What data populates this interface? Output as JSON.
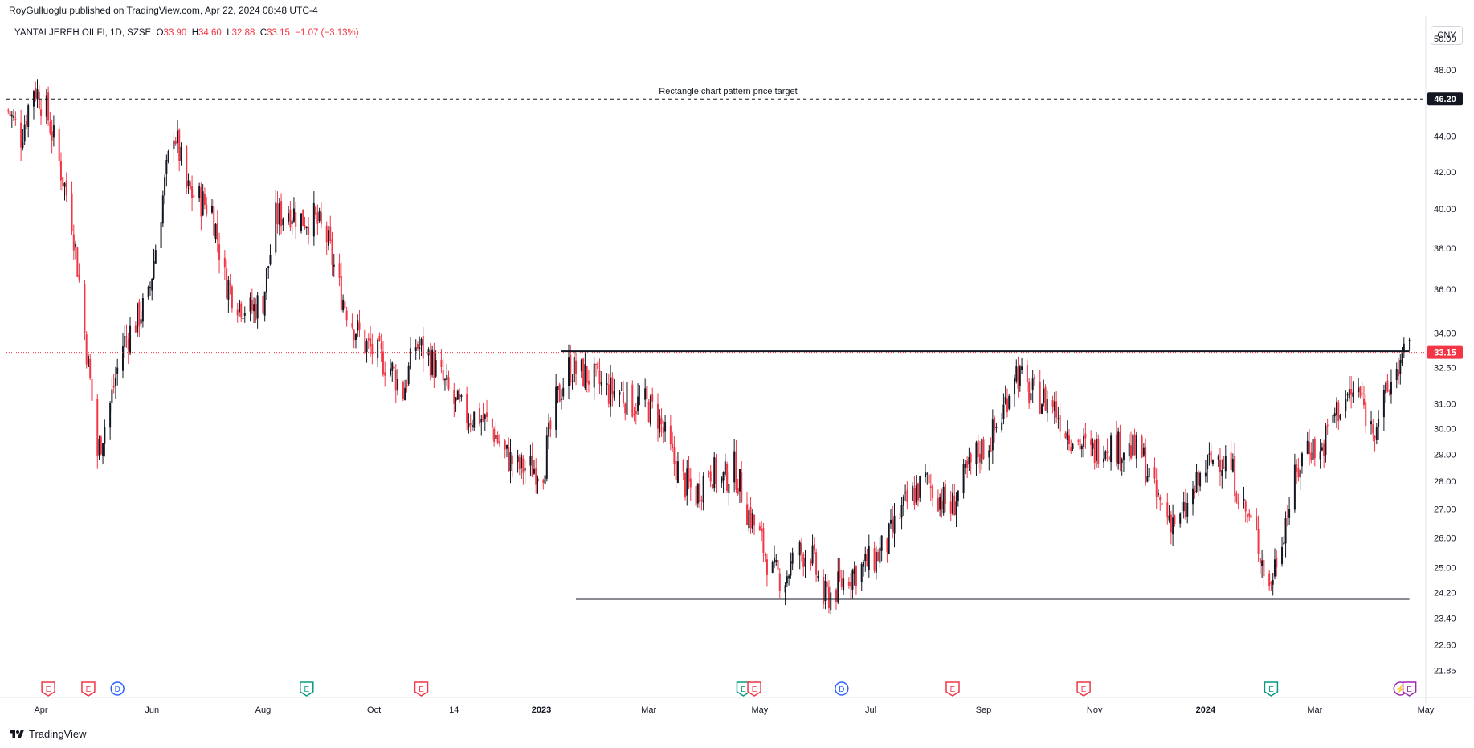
{
  "header": {
    "published": "RoyGulluoglu published on TradingView.com, Apr 22, 2024 08:48 UTC-4",
    "symbol": "YANTAI JEREH OILFI, 1D, SZSE",
    "open_label": "O",
    "open": "33.90",
    "high_label": "H",
    "high": "34.60",
    "low_label": "L",
    "low": "32.88",
    "close_label": "C",
    "close": "33.15",
    "change": "−1.07 (−3.13%)"
  },
  "currency": "CNY",
  "footer": {
    "brand": "TradingView"
  },
  "colors": {
    "up": "#131722",
    "down": "#f23645",
    "price_label_bg": "#f23645",
    "grid": "#ffffff",
    "axis": "#e0e3eb"
  },
  "chart_data": {
    "type": "candlestick",
    "title": "YANTAI JEREH OILFI, 1D, SZSE",
    "ylabel": "CNY",
    "scale": "log",
    "ylim": [
      21.5,
      51.5
    ],
    "y_ticks": [
      21.85,
      22.6,
      23.4,
      24.2,
      25.0,
      26.0,
      27.0,
      28.0,
      29.0,
      30.0,
      31.0,
      32.5,
      34.0,
      36.0,
      38.0,
      40.0,
      42.0,
      44.0,
      48.0,
      50.0
    ],
    "x_ticks": [
      "Apr",
      "Jun",
      "Aug",
      "Oct",
      "14",
      "2023",
      "Mar",
      "May",
      "Jul",
      "Sep",
      "Nov",
      "2024",
      "Mar",
      "May"
    ],
    "x_tick_dates": [
      "2022-04-01",
      "2022-06-01",
      "2022-08-01",
      "2022-10-01",
      "2022-11-14",
      "2023-01-01",
      "2023-03-01",
      "2023-05-01",
      "2023-07-01",
      "2023-09-01",
      "2023-11-01",
      "2024-01-01",
      "2024-03-01",
      "2024-05-01"
    ],
    "x_range": [
      "2022-03-13",
      "2024-05-01"
    ],
    "last_price": 33.15,
    "annotations": {
      "target_line": {
        "value": 46.2,
        "label": "Rectangle chart pattern price target",
        "price_label": "46.20",
        "style": "dashed"
      },
      "resistance": {
        "value": 33.2,
        "from": "2023-01-12",
        "to": "2024-04-22"
      },
      "support": {
        "value": 24.0,
        "from": "2023-01-20",
        "to": "2024-04-22"
      }
    },
    "event_markers": [
      {
        "date": "2022-04-05",
        "kind": "E",
        "color": "#f23645"
      },
      {
        "date": "2022-04-27",
        "kind": "E",
        "color": "#f23645"
      },
      {
        "date": "2022-05-13",
        "kind": "D",
        "color": "#2962ff"
      },
      {
        "date": "2022-08-25",
        "kind": "E",
        "color": "#089981"
      },
      {
        "date": "2022-10-27",
        "kind": "E",
        "color": "#f23645"
      },
      {
        "date": "2023-04-22",
        "kind": "E",
        "color": "#089981"
      },
      {
        "date": "2023-04-28",
        "kind": "E",
        "color": "#f23645"
      },
      {
        "date": "2023-06-15",
        "kind": "D",
        "color": "#2962ff"
      },
      {
        "date": "2023-08-15",
        "kind": "E",
        "color": "#f23645"
      },
      {
        "date": "2023-10-26",
        "kind": "E",
        "color": "#f23645"
      },
      {
        "date": "2024-02-06",
        "kind": "E",
        "color": "#089981"
      },
      {
        "date": "2024-04-17",
        "kind": "S",
        "color": "#9c27b0"
      },
      {
        "date": "2024-04-22",
        "kind": "E",
        "color": "#9c27b0"
      }
    ],
    "series": [
      {
        "name": "price",
        "points": [
          [
            "2022-03-14",
            45.5
          ],
          [
            "2022-03-21",
            44.0
          ],
          [
            "2022-03-28",
            47.0
          ],
          [
            "2022-04-04",
            45.5
          ],
          [
            "2022-04-11",
            42.5
          ],
          [
            "2022-04-18",
            39.5
          ],
          [
            "2022-04-25",
            34.0
          ],
          [
            "2022-05-02",
            29.0
          ],
          [
            "2022-05-09",
            31.0
          ],
          [
            "2022-05-16",
            33.5
          ],
          [
            "2022-05-23",
            34.5
          ],
          [
            "2022-05-30",
            35.5
          ],
          [
            "2022-06-06",
            40.0
          ],
          [
            "2022-06-13",
            44.5
          ],
          [
            "2022-06-20",
            41.0
          ],
          [
            "2022-06-27",
            40.5
          ],
          [
            "2022-07-04",
            40.0
          ],
          [
            "2022-07-11",
            36.5
          ],
          [
            "2022-07-18",
            35.5
          ],
          [
            "2022-07-25",
            35.0
          ],
          [
            "2022-08-01",
            35.5
          ],
          [
            "2022-08-08",
            39.5
          ],
          [
            "2022-08-15",
            40.0
          ],
          [
            "2022-08-22",
            39.5
          ],
          [
            "2022-08-29",
            39.5
          ],
          [
            "2022-09-05",
            38.5
          ],
          [
            "2022-09-12",
            36.0
          ],
          [
            "2022-09-19",
            34.5
          ],
          [
            "2022-09-26",
            33.5
          ],
          [
            "2022-10-10",
            32.5
          ],
          [
            "2022-10-17",
            31.5
          ],
          [
            "2022-10-24",
            33.5
          ],
          [
            "2022-10-31",
            33.0
          ],
          [
            "2022-11-07",
            32.0
          ],
          [
            "2022-11-14",
            31.0
          ],
          [
            "2022-11-21",
            30.5
          ],
          [
            "2022-11-28",
            30.5
          ],
          [
            "2022-12-05",
            30.0
          ],
          [
            "2022-12-12",
            29.0
          ],
          [
            "2022-12-19",
            28.5
          ],
          [
            "2022-12-26",
            28.5
          ],
          [
            "2023-01-02",
            28.5
          ],
          [
            "2023-01-09",
            31.0
          ],
          [
            "2023-01-16",
            32.5
          ],
          [
            "2023-01-30",
            32.0
          ],
          [
            "2023-02-06",
            31.5
          ],
          [
            "2023-02-13",
            31.5
          ],
          [
            "2023-02-20",
            31.0
          ],
          [
            "2023-02-27",
            31.0
          ],
          [
            "2023-03-06",
            30.5
          ],
          [
            "2023-03-13",
            29.0
          ],
          [
            "2023-03-20",
            28.0
          ],
          [
            "2023-03-27",
            27.5
          ],
          [
            "2023-04-03",
            28.5
          ],
          [
            "2023-04-10",
            28.0
          ],
          [
            "2023-04-17",
            28.5
          ],
          [
            "2023-04-24",
            27.0
          ],
          [
            "2023-05-01",
            26.0
          ],
          [
            "2023-05-08",
            24.8
          ],
          [
            "2023-05-15",
            24.7
          ],
          [
            "2023-05-22",
            25.5
          ],
          [
            "2023-05-29",
            25.5
          ],
          [
            "2023-06-05",
            24.0
          ],
          [
            "2023-06-12",
            24.3
          ],
          [
            "2023-06-19",
            24.8
          ],
          [
            "2023-06-26",
            25.0
          ],
          [
            "2023-07-03",
            25.3
          ],
          [
            "2023-07-10",
            25.8
          ],
          [
            "2023-07-17",
            26.8
          ],
          [
            "2023-07-24",
            27.5
          ],
          [
            "2023-07-31",
            28.0
          ],
          [
            "2023-08-07",
            27.5
          ],
          [
            "2023-08-14",
            27.0
          ],
          [
            "2023-08-21",
            28.0
          ],
          [
            "2023-08-28",
            29.0
          ],
          [
            "2023-09-04",
            29.5
          ],
          [
            "2023-09-11",
            30.5
          ],
          [
            "2023-09-18",
            32.5
          ],
          [
            "2023-09-25",
            31.5
          ],
          [
            "2023-10-09",
            31.0
          ],
          [
            "2023-10-16",
            30.0
          ],
          [
            "2023-10-23",
            29.5
          ],
          [
            "2023-10-30",
            29.0
          ],
          [
            "2023-11-06",
            29.5
          ],
          [
            "2023-11-13",
            29.3
          ],
          [
            "2023-11-20",
            29.2
          ],
          [
            "2023-11-27",
            29.0
          ],
          [
            "2023-12-04",
            27.5
          ],
          [
            "2023-12-11",
            26.8
          ],
          [
            "2023-12-18",
            26.5
          ],
          [
            "2023-12-25",
            27.5
          ],
          [
            "2024-01-01",
            28.5
          ],
          [
            "2024-01-08",
            29.0
          ],
          [
            "2024-01-15",
            28.5
          ],
          [
            "2024-01-22",
            27.0
          ],
          [
            "2024-01-29",
            26.0
          ],
          [
            "2024-02-05",
            24.3
          ],
          [
            "2024-02-19",
            28.0
          ],
          [
            "2024-02-26",
            29.5
          ],
          [
            "2024-03-04",
            29.0
          ],
          [
            "2024-03-11",
            30.5
          ],
          [
            "2024-03-18",
            31.2
          ],
          [
            "2024-03-25",
            31.5
          ],
          [
            "2024-04-01",
            30.0
          ],
          [
            "2024-04-08",
            31.0
          ],
          [
            "2024-04-15",
            32.5
          ],
          [
            "2024-04-22",
            33.15
          ]
        ]
      }
    ]
  }
}
